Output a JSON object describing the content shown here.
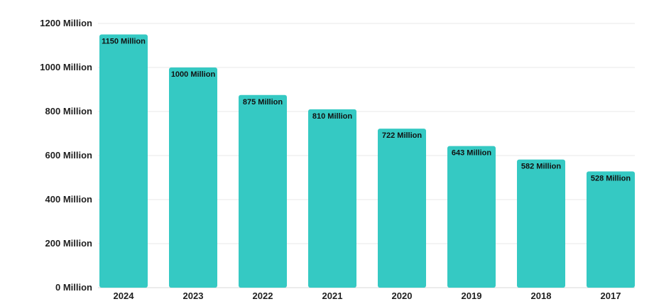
{
  "chart_data": {
    "type": "bar",
    "categories": [
      "2024",
      "2023",
      "2022",
      "2021",
      "2020",
      "2019",
      "2018",
      "2017"
    ],
    "values": [
      1150,
      1000,
      875,
      810,
      722,
      643,
      582,
      528
    ],
    "data_labels": [
      "1150 Million",
      "1000 Million",
      "875 Million",
      "810 Million",
      "722 Million",
      "643 Million",
      "582 Million",
      "528 Million"
    ],
    "y_ticks": [
      0,
      200,
      400,
      600,
      800,
      1000,
      1200
    ],
    "y_tick_labels": [
      "0 Million",
      "200 Million",
      "400 Million",
      "600 Million",
      "800 Million",
      "1000 Million",
      "1200 Million"
    ],
    "ylim": [
      0,
      1200
    ],
    "grid": true,
    "legend": "none",
    "title": "",
    "xlabel": "",
    "ylabel": "",
    "bar_color": "#35c9c3"
  }
}
